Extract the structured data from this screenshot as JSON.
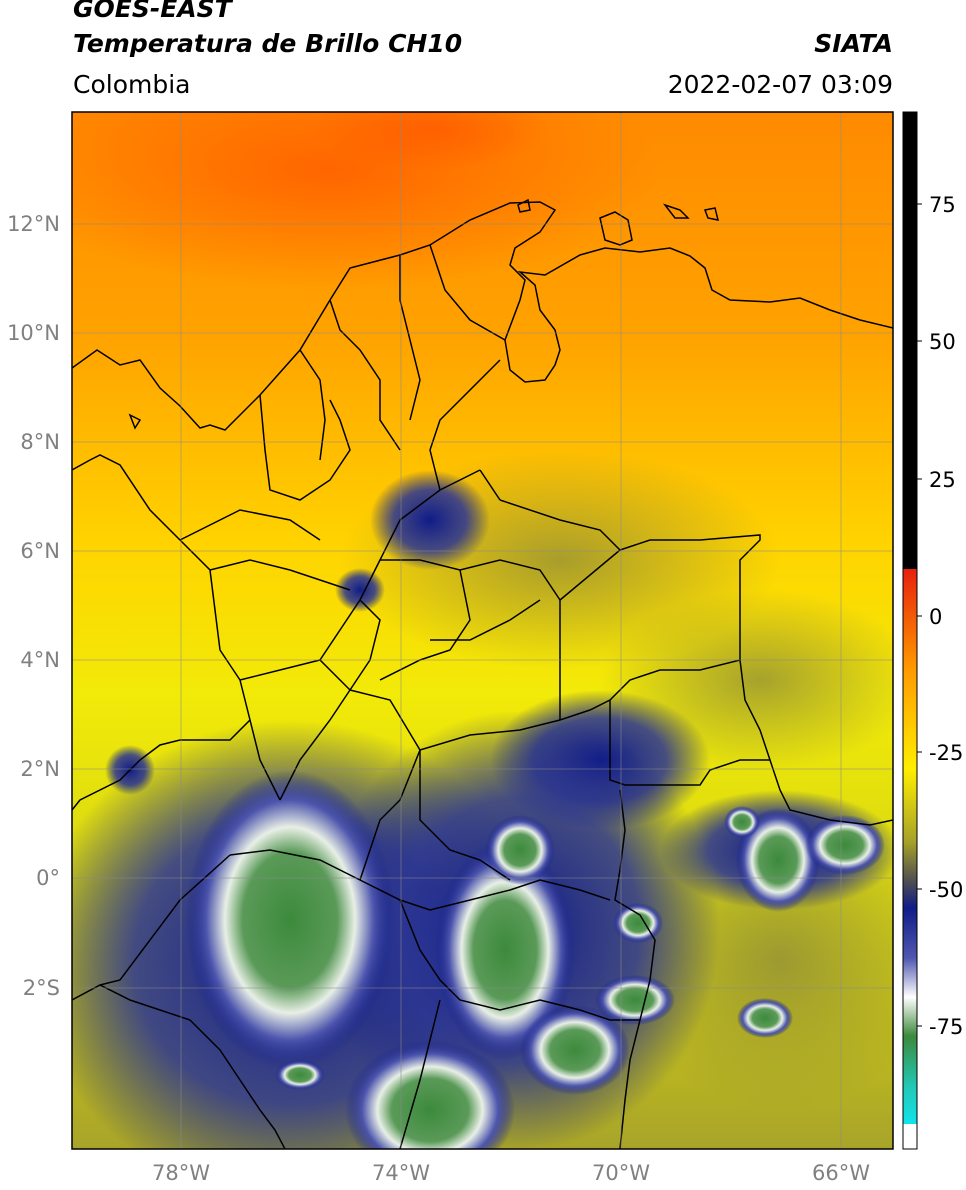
{
  "header": {
    "satellite": "GOES-EAST",
    "product": "Temperatura de Brillo CH10",
    "region": "Colombia",
    "agency": "SIATA",
    "datetime": "2022-02-07 03:09"
  },
  "map": {
    "lat_labels": [
      "12°N",
      "10°N",
      "8°N",
      "6°N",
      "4°N",
      "2°N",
      "0°",
      "2°S"
    ],
    "lon_labels": [
      "78°W",
      "74°W",
      "70°W",
      "66°W"
    ]
  },
  "colorbar": {
    "tick_labels": [
      "75",
      "50",
      "25",
      "0",
      "-25",
      "-50",
      "-75"
    ],
    "colors": {
      "black": "#000000",
      "red": "#e8200c",
      "orange": "#ff9a00",
      "yellow": "#ffee00",
      "olive": "#a6a228",
      "navy": "#101c88",
      "white": "#ffffff",
      "green": "#3c8a3c",
      "teal": "#22c8b4",
      "cyan": "#10e4ec"
    }
  }
}
